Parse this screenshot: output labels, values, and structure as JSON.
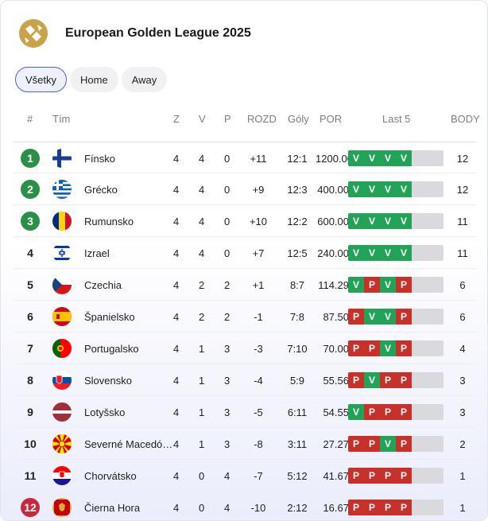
{
  "header": {
    "title": "European Golden League 2025"
  },
  "tabs": [
    {
      "label": "Všetky",
      "active": true
    },
    {
      "label": "Home",
      "active": false
    },
    {
      "label": "Away",
      "active": false
    }
  ],
  "columns": {
    "rank": "#",
    "team": "Tím",
    "z": "Z",
    "v": "V",
    "p": "P",
    "rozd": "ROZD",
    "goly": "Góly",
    "por": "POR",
    "last5": "Last 5",
    "body": "BODY"
  },
  "colors": {
    "qualify": "#2a8f47",
    "relegate": "#c8283a",
    "win": "#22a358",
    "loss": "#c8302a",
    "accent": "#4a5fd0"
  },
  "rows": [
    {
      "rank": "1",
      "zone": "q",
      "flag": "fi-flag-icon",
      "team": "Fínsko",
      "z": "4",
      "v": "4",
      "p": "0",
      "rozd": "+11",
      "goly": "12:1",
      "por": "1200.00",
      "form": [
        "V",
        "V",
        "V",
        "V"
      ],
      "body": "12"
    },
    {
      "rank": "2",
      "zone": "q",
      "flag": "gr-flag-icon",
      "team": "Grécko",
      "z": "4",
      "v": "4",
      "p": "0",
      "rozd": "+9",
      "goly": "12:3",
      "por": "400.00",
      "form": [
        "V",
        "V",
        "V",
        "V"
      ],
      "body": "12"
    },
    {
      "rank": "3",
      "zone": "q",
      "flag": "ro-flag-icon",
      "team": "Rumunsko",
      "z": "4",
      "v": "4",
      "p": "0",
      "rozd": "+10",
      "goly": "12:2",
      "por": "600.00",
      "form": [
        "V",
        "V",
        "V",
        "V"
      ],
      "body": "11"
    },
    {
      "rank": "4",
      "zone": "n",
      "flag": "il-flag-icon",
      "team": "Izrael",
      "z": "4",
      "v": "4",
      "p": "0",
      "rozd": "+7",
      "goly": "12:5",
      "por": "240.00",
      "form": [
        "V",
        "V",
        "V",
        "V"
      ],
      "body": "11"
    },
    {
      "rank": "5",
      "zone": "n",
      "flag": "cz-flag-icon",
      "team": "Czechia",
      "z": "4",
      "v": "2",
      "p": "2",
      "rozd": "+1",
      "goly": "8:7",
      "por": "114.29",
      "form": [
        "V",
        "P",
        "V",
        "P"
      ],
      "body": "6"
    },
    {
      "rank": "6",
      "zone": "n",
      "flag": "es-flag-icon",
      "team": "Španielsko",
      "z": "4",
      "v": "2",
      "p": "2",
      "rozd": "-1",
      "goly": "7:8",
      "por": "87.50",
      "form": [
        "P",
        "V",
        "V",
        "P"
      ],
      "body": "6"
    },
    {
      "rank": "7",
      "zone": "n",
      "flag": "pt-flag-icon",
      "team": "Portugalsko",
      "z": "4",
      "v": "1",
      "p": "3",
      "rozd": "-3",
      "goly": "7:10",
      "por": "70.00",
      "form": [
        "P",
        "P",
        "V",
        "P"
      ],
      "body": "4"
    },
    {
      "rank": "8",
      "zone": "n",
      "flag": "sk-flag-icon",
      "team": "Slovensko",
      "z": "4",
      "v": "1",
      "p": "3",
      "rozd": "-4",
      "goly": "5:9",
      "por": "55.56",
      "form": [
        "P",
        "V",
        "P",
        "P"
      ],
      "body": "3"
    },
    {
      "rank": "9",
      "zone": "n",
      "flag": "lv-flag-icon",
      "team": "Lotyšsko",
      "z": "4",
      "v": "1",
      "p": "3",
      "rozd": "-5",
      "goly": "6:11",
      "por": "54.55",
      "form": [
        "V",
        "P",
        "P",
        "P"
      ],
      "body": "3"
    },
    {
      "rank": "10",
      "zone": "n",
      "flag": "mk-flag-icon",
      "team": "Severné Macedó…",
      "z": "4",
      "v": "1",
      "p": "3",
      "rozd": "-8",
      "goly": "3:11",
      "por": "27.27",
      "form": [
        "P",
        "P",
        "V",
        "P"
      ],
      "body": "2"
    },
    {
      "rank": "11",
      "zone": "n",
      "flag": "hr-flag-icon",
      "team": "Chorvátsko",
      "z": "4",
      "v": "0",
      "p": "4",
      "rozd": "-7",
      "goly": "5:12",
      "por": "41.67",
      "form": [
        "P",
        "P",
        "P",
        "P"
      ],
      "body": "1"
    },
    {
      "rank": "12",
      "zone": "r",
      "flag": "me-flag-icon",
      "team": "Čierna Hora",
      "z": "4",
      "v": "0",
      "p": "4",
      "rozd": "-10",
      "goly": "2:12",
      "por": "16.67",
      "form": [
        "P",
        "P",
        "P",
        "P"
      ],
      "body": "1"
    }
  ]
}
